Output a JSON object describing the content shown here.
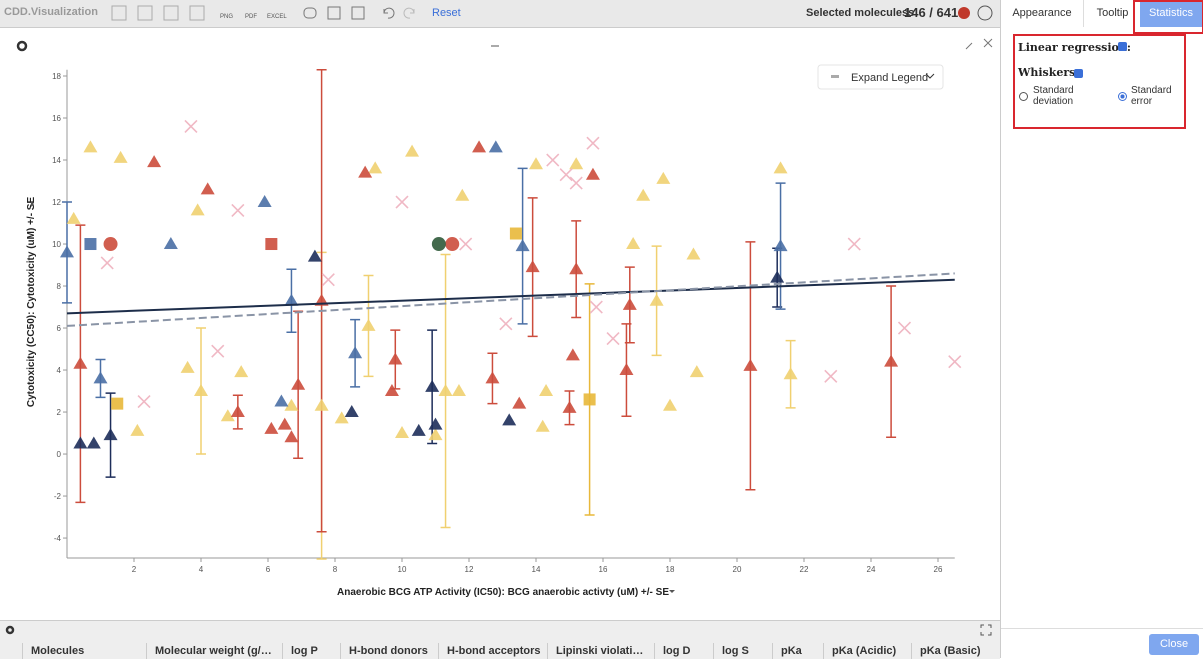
{
  "toolbar": {
    "logo": "CDD.Visualization",
    "png": "PNG",
    "pdf": "PDF",
    "excel": "EXCEL",
    "reset": "Reset",
    "selected_label": "Selected moleculess",
    "selected_count": "146 / 641"
  },
  "tabs": [
    "Appearance",
    "Tooltip",
    "Statistics"
  ],
  "statistics": {
    "linear_regression": "Linear regression:",
    "whiskers": "Whiskers:",
    "options": [
      "Standard deviation",
      "Standard error"
    ],
    "close": "Close"
  },
  "legend_button": "Expand Legend",
  "table_headers": [
    "Molecules",
    "Molecular weight (g/…",
    "log P",
    "H-bond donors",
    "H-bond acceptors",
    "Lipinski violati…",
    "log D",
    "log S",
    "pKa",
    "pKa (Acidic)",
    "pKa (Basic)"
  ],
  "chart_data": {
    "type": "scatter",
    "x_label": "Anaerobic BCG ATP Activity (IC50): BCG anaerobic activty (uM) +/- SE",
    "y_label": "Cytotoxicity (CC50): Cytotoxicity (uM) +/- SE",
    "xlim": [
      0,
      26.5
    ],
    "ylim": [
      -4.95,
      18.3
    ],
    "xticks": [
      2,
      4,
      6,
      8,
      10,
      12,
      14,
      16,
      18,
      20,
      22,
      24,
      26
    ],
    "yticks": [
      -4,
      -2,
      0,
      2,
      4,
      6,
      8,
      10,
      12,
      14,
      16,
      18
    ],
    "series": [
      {
        "color": "#f0d070",
        "marker": "triangle",
        "x": [
          0.2,
          0.7,
          1.6,
          2.1,
          3.6,
          4.0,
          4.8,
          5.2,
          6.7,
          7.6,
          8.2,
          9.0,
          9.2,
          10.0,
          10.3,
          11.0,
          11.3,
          11.7,
          11.8,
          14.0,
          14.2,
          14.3,
          15.2,
          17.2,
          17.8,
          17.6,
          18.0,
          18.8,
          18.7,
          21.3,
          21.6,
          16.9,
          3.9
        ],
        "y": [
          11.2,
          14.6,
          14.1,
          1.1,
          4.1,
          3.0,
          1.8,
          3.9,
          2.3,
          2.3,
          1.7,
          6.1,
          13.6,
          1.0,
          14.4,
          0.9,
          3.0,
          3.0,
          12.3,
          13.8,
          1.3,
          3.0,
          13.8,
          12.3,
          13.1,
          7.3,
          2.3,
          3.9,
          9.5,
          13.6,
          3.8,
          10.0,
          11.6
        ],
        "errors": [
          null,
          null,
          null,
          null,
          null,
          3.0,
          null,
          null,
          null,
          7.3,
          null,
          2.4,
          null,
          null,
          null,
          null,
          6.5,
          null,
          null,
          null,
          null,
          null,
          null,
          null,
          null,
          2.6,
          null,
          null,
          null,
          null,
          1.6,
          null,
          null
        ]
      },
      {
        "color": "#cc4c3c",
        "marker": "triangle",
        "x": [
          0.4,
          2.6,
          4.2,
          5.1,
          6.1,
          6.5,
          6.7,
          6.9,
          7.6,
          9.7,
          9.8,
          12.3,
          12.7,
          13.5,
          13.9,
          15.0,
          15.1,
          15.2,
          15.7,
          16.7,
          16.8,
          20.4,
          24.6,
          8.9
        ],
        "y": [
          4.3,
          13.9,
          12.6,
          2.0,
          1.2,
          1.4,
          0.8,
          3.3,
          7.3,
          3.0,
          4.5,
          14.6,
          3.6,
          2.4,
          8.9,
          2.2,
          4.7,
          8.8,
          13.3,
          4.0,
          7.1,
          4.2,
          4.4,
          13.4
        ],
        "errors": [
          6.6,
          null,
          null,
          0.8,
          null,
          null,
          null,
          3.5,
          11.0,
          null,
          1.4,
          null,
          1.2,
          null,
          3.3,
          0.8,
          null,
          2.3,
          null,
          2.2,
          1.8,
          5.9,
          3.6,
          null
        ]
      },
      {
        "color": "#1d2d5a",
        "marker": "triangle",
        "x": [
          0.4,
          0.8,
          1.3,
          7.4,
          8.5,
          10.5,
          10.9,
          11.0,
          13.2,
          21.2
        ],
        "y": [
          0.5,
          0.5,
          0.9,
          9.4,
          2.0,
          1.1,
          3.2,
          1.4,
          1.6,
          8.4
        ],
        "errors": [
          null,
          null,
          2.0,
          null,
          null,
          null,
          2.7,
          null,
          null,
          1.4
        ]
      },
      {
        "color": "#4a6fa5",
        "marker": "triangle",
        "x": [
          0.0,
          1.0,
          3.1,
          5.9,
          6.4,
          6.7,
          8.6,
          13.6,
          21.3,
          12.8
        ],
        "y": [
          9.6,
          3.6,
          10.0,
          12.0,
          2.5,
          7.3,
          4.8,
          9.9,
          9.9,
          14.6
        ],
        "errors": [
          2.4,
          0.9,
          null,
          null,
          null,
          1.5,
          1.6,
          3.7,
          3.0,
          null
        ]
      },
      {
        "color": "#cc4c3c",
        "marker": "circle",
        "x": [
          1.3,
          11.5
        ],
        "y": [
          10.0,
          10.0
        ],
        "errors": [
          null,
          null
        ]
      },
      {
        "color": "#2f5a3a",
        "marker": "circle",
        "x": [
          11.1
        ],
        "y": [
          10.0
        ],
        "errors": [
          null
        ]
      },
      {
        "color": "#cc4c3c",
        "marker": "square",
        "x": [
          6.1
        ],
        "y": [
          10.0
        ],
        "errors": [
          null
        ]
      },
      {
        "color": "#4a6fa5",
        "marker": "square",
        "x": [
          0.7
        ],
        "y": [
          10.0
        ],
        "errors": [
          null
        ]
      },
      {
        "color": "#e8b83a",
        "marker": "square",
        "x": [
          15.6,
          1.5,
          13.4
        ],
        "y": [
          2.6,
          2.4,
          10.5
        ],
        "errors": [
          5.5,
          null,
          null
        ]
      },
      {
        "color": "#f0b8c4",
        "marker": "cross",
        "x": [
          1.2,
          2.3,
          4.5,
          5.1,
          7.8,
          10.0,
          11.9,
          13.1,
          14.5,
          15.2,
          15.7,
          15.8,
          16.3,
          22.8,
          23.5,
          25.0,
          26.5,
          3.7,
          14.9
        ],
        "y": [
          9.1,
          2.5,
          4.9,
          11.6,
          8.3,
          12.0,
          10.0,
          6.2,
          14.0,
          12.9,
          14.8,
          7.0,
          5.5,
          3.7,
          10.0,
          6.0,
          4.4,
          15.6,
          13.3
        ],
        "errors": [
          null,
          null,
          null,
          null,
          null,
          null,
          null,
          null,
          null,
          null,
          null,
          null,
          null,
          null,
          null,
          null,
          null,
          null,
          null
        ]
      }
    ],
    "regression": [
      {
        "color": "#1d2d4a",
        "dashed": false,
        "x": [
          0,
          26.5
        ],
        "y": [
          6.7,
          8.3
        ]
      },
      {
        "color": "#8a94a6",
        "dashed": true,
        "x": [
          0,
          26.5
        ],
        "y": [
          6.1,
          8.6
        ]
      }
    ]
  }
}
